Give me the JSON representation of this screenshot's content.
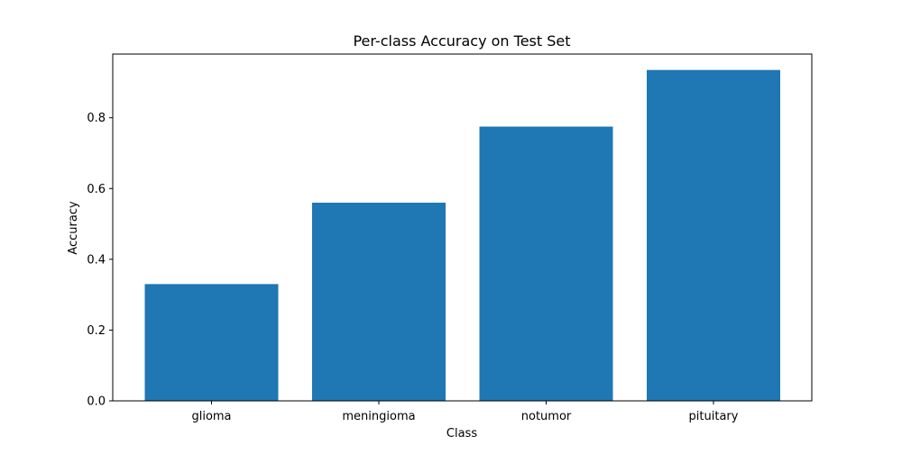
{
  "chart_data": {
    "type": "bar",
    "title": "Per-class Accuracy on Test Set",
    "xlabel": "Class",
    "ylabel": "Accuracy",
    "categories": [
      "glioma",
      "meningioma",
      "notumor",
      "pituitary"
    ],
    "values": [
      0.33,
      0.56,
      0.775,
      0.935
    ],
    "ylim": [
      0,
      0.98
    ],
    "yticks": [
      0.0,
      0.2,
      0.4,
      0.6,
      0.8
    ],
    "ytick_labels": [
      "0.0",
      "0.2",
      "0.4",
      "0.6",
      "0.8"
    ],
    "grid": false,
    "legend": "none",
    "bar_color": "#1f77b4"
  }
}
